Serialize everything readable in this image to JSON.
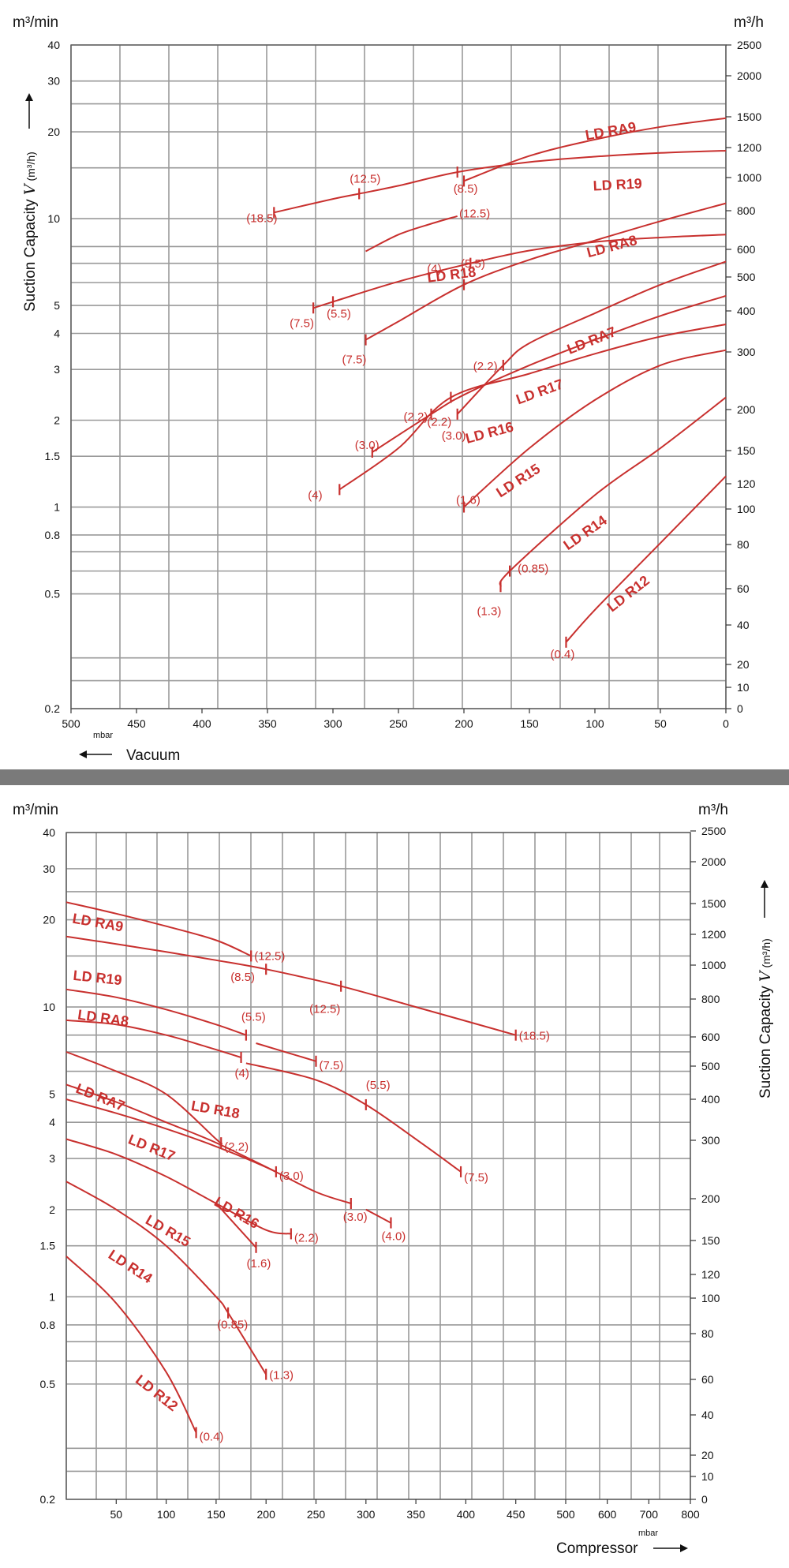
{
  "chart_data": [
    {
      "type": "line",
      "panel": "vacuum",
      "xlabel": "Vacuum",
      "x_unit": "mbar",
      "x_direction": "reversed",
      "xlim": [
        500,
        0
      ],
      "x_ticks": [
        500,
        450,
        400,
        350,
        300,
        250,
        200,
        150,
        100,
        50,
        0
      ],
      "ylabel": "Suction Capacity",
      "ylabel_symbol": "V",
      "ylabel_unit": "(m³/h)",
      "y_unit_left": "m³/min",
      "y_unit_right": "m³/h",
      "y_scale": "log",
      "ylim": [
        0.2,
        40
      ],
      "y_ticks_left": [
        "0.2",
        "0.5",
        "0.8",
        "1",
        "1.5",
        "2",
        "3",
        "4",
        "5",
        "10",
        "20",
        "30",
        "40"
      ],
      "y_ticks_right": [
        "0",
        "10",
        "20",
        "40",
        "60",
        "80",
        "100",
        "120",
        "150",
        "200",
        "300",
        "400",
        "500",
        "600",
        "800",
        "1000",
        "1200",
        "1500",
        "2000",
        "2500"
      ],
      "grid": true,
      "series": [
        {
          "name": "LD RA9",
          "x": [
            200,
            150,
            100,
            50,
            0
          ],
          "y": [
            13.5,
            16.5,
            18.8,
            20.8,
            22.3
          ],
          "annotations": [
            {
              "text": "(12.5)",
              "x": 200,
              "y": 13.5
            }
          ]
        },
        {
          "name": "LD R19",
          "x": [
            345,
            300,
            280,
            250,
            205,
            150,
            100,
            50,
            0
          ],
          "y": [
            10.5,
            11.7,
            12.2,
            13.0,
            14.5,
            15.7,
            16.4,
            16.9,
            17.2
          ],
          "annotations": [
            {
              "text": "(18.5)",
              "x": 345,
              "y": 10.5
            },
            {
              "text": "(12.5)",
              "x": 280,
              "y": 12.2
            },
            {
              "text": "(8.5)",
              "x": 205,
              "y": 14.5
            }
          ]
        },
        {
          "name": "LD R18",
          "x": [
            275,
            250,
            225,
            205
          ],
          "y": [
            7.7,
            8.8,
            9.6,
            10.2
          ],
          "annotations": []
        },
        {
          "name": "LD R18",
          "x": [
            315,
            300,
            250,
            195,
            150,
            100,
            50,
            0
          ],
          "y": [
            4.9,
            5.15,
            6.05,
            7.0,
            7.75,
            8.3,
            8.6,
            8.8
          ],
          "annotations": [
            {
              "text": "(7.5)",
              "x": 315,
              "y": 4.9
            },
            {
              "text": "(5.5)",
              "x": 300,
              "y": 5.15
            },
            {
              "text": "(4)",
              "x": 195,
              "y": 7.0
            }
          ]
        },
        {
          "name": "LD RA8",
          "x": [
            275,
            250,
            200,
            150,
            100,
            50,
            0
          ],
          "y": [
            3.8,
            4.4,
            5.9,
            7.2,
            8.4,
            9.8,
            11.3
          ],
          "annotations": [
            {
              "text": "(7.5)",
              "x": 275,
              "y": 3.8
            },
            {
              "text": "(5.5)",
              "x": 200,
              "y": 5.9
            }
          ]
        },
        {
          "name": "LD RA7",
          "x": [
            205,
            170,
            150,
            100,
            50,
            0
          ],
          "y": [
            2.1,
            3.1,
            3.7,
            4.7,
            5.9,
            7.1
          ],
          "annotations": [
            {
              "text": "(3.0)",
              "x": 205,
              "y": 2.1
            },
            {
              "text": "(2.2)",
              "x": 170,
              "y": 3.1
            }
          ]
        },
        {
          "name": "LD R17",
          "x": [
            270,
            225,
            200,
            150,
            100,
            50,
            0
          ],
          "y": [
            1.55,
            2.1,
            2.45,
            3.1,
            3.8,
            4.6,
            5.4
          ],
          "annotations": [
            {
              "text": "(3.0)",
              "x": 270,
              "y": 1.55
            },
            {
              "text": "(2.2)",
              "x": 225,
              "y": 2.1
            }
          ]
        },
        {
          "name": "LD R16",
          "x": [
            295,
            250,
            210,
            150,
            100,
            50,
            0
          ],
          "y": [
            1.15,
            1.6,
            2.4,
            2.9,
            3.4,
            3.9,
            4.3
          ],
          "annotations": [
            {
              "text": "(4)",
              "x": 295,
              "y": 1.15
            },
            {
              "text": "(2.2)",
              "x": 210,
              "y": 2.4
            }
          ]
        },
        {
          "name": "LD R15",
          "x": [
            200,
            150,
            100,
            50,
            0
          ],
          "y": [
            1.0,
            1.6,
            2.35,
            3.1,
            3.5
          ],
          "annotations": [
            {
              "text": "(1.6)",
              "x": 200,
              "y": 1.0
            }
          ]
        },
        {
          "name": "LD R14",
          "x": [
            172,
            165,
            100,
            50,
            0
          ],
          "y": [
            0.53,
            0.6,
            1.1,
            1.6,
            2.4
          ],
          "annotations": [
            {
              "text": "(1.3)",
              "x": 172,
              "y": 0.53
            },
            {
              "text": "(0.85)",
              "x": 165,
              "y": 0.6
            }
          ]
        },
        {
          "name": "LD R12",
          "x": [
            122,
            100,
            50,
            0
          ],
          "y": [
            0.34,
            0.44,
            0.75,
            1.28
          ],
          "annotations": [
            {
              "text": "(0.4)",
              "x": 122,
              "y": 0.34
            }
          ]
        }
      ]
    },
    {
      "type": "line",
      "panel": "compressor",
      "xlabel": "Compressor",
      "x_unit": "mbar",
      "xlim": [
        0,
        800
      ],
      "x_ticks": [
        50,
        100,
        150,
        200,
        250,
        300,
        350,
        400,
        450,
        500,
        600,
        700,
        800
      ],
      "ylabel": "Suction Capacity",
      "ylabel_symbol": "V",
      "ylabel_unit": "(m³/h)",
      "y_unit_left": "m³/min",
      "y_unit_right": "m³/h",
      "y_scale": "log",
      "ylim": [
        0.2,
        40
      ],
      "y_ticks_left": [
        "0.2",
        "0.5",
        "0.8",
        "1",
        "1.5",
        "2",
        "3",
        "4",
        "5",
        "10",
        "20",
        "30",
        "40"
      ],
      "y_ticks_right": [
        "0",
        "10",
        "20",
        "40",
        "60",
        "80",
        "100",
        "120",
        "150",
        "200",
        "300",
        "400",
        "500",
        "600",
        "800",
        "1000",
        "1200",
        "1500",
        "2000",
        "2500"
      ],
      "grid": true,
      "series": [
        {
          "name": "LD RA9",
          "x": [
            0,
            50,
            100,
            150,
            185
          ],
          "y": [
            23,
            21,
            19,
            17,
            15
          ],
          "annotations": [
            {
              "text": "(12.5)",
              "x": 185,
              "y": 15
            }
          ]
        },
        {
          "name": "LD R19",
          "x": [
            0,
            50,
            100,
            150,
            200,
            275,
            350,
            450
          ],
          "y": [
            17.5,
            16.5,
            15.5,
            14.5,
            13.5,
            11.8,
            10.0,
            8.0
          ],
          "annotations": [
            {
              "text": "(8.5)",
              "x": 200,
              "y": 13.5
            },
            {
              "text": "(12.5)",
              "x": 275,
              "y": 11.8
            },
            {
              "text": "(18.5)",
              "x": 450,
              "y": 8.0
            }
          ]
        },
        {
          "name": "LD RA8",
          "x": [
            0,
            50,
            100,
            150,
            180
          ],
          "y": [
            11.5,
            10.8,
            9.8,
            8.7,
            8.0
          ],
          "annotations": [
            {
              "text": "(5.5)",
              "x": 180,
              "y": 8.0
            }
          ]
        },
        {
          "name": "LD RA8",
          "x": [
            190,
            250
          ],
          "y": [
            7.5,
            6.5
          ],
          "annotations": [
            {
              "text": "(7.5)",
              "x": 250,
              "y": 6.5
            }
          ]
        },
        {
          "name": "LD R18",
          "x": [
            0,
            50,
            100,
            140,
            175
          ],
          "y": [
            9.0,
            8.7,
            8.0,
            7.3,
            6.7
          ],
          "annotations": [
            {
              "text": "(4)",
              "x": 175,
              "y": 6.7
            }
          ]
        },
        {
          "name": "LD R18",
          "x": [
            180,
            250,
            300,
            355,
            395
          ],
          "y": [
            6.4,
            5.6,
            4.6,
            3.4,
            2.7
          ],
          "annotations": [
            {
              "text": "(5.5)",
              "x": 300,
              "y": 4.6
            },
            {
              "text": "(7.5)",
              "x": 395,
              "y": 2.7
            }
          ]
        },
        {
          "name": "LD RA7",
          "x": [
            0,
            50,
            100,
            150,
            155
          ],
          "y": [
            7.0,
            6.0,
            5.0,
            3.5,
            3.4
          ],
          "annotations": [
            {
              "text": "(2.2)",
              "x": 155,
              "y": 3.4
            }
          ]
        },
        {
          "name": "LD R17",
          "x": [
            0,
            50,
            100,
            150,
            210
          ],
          "y": [
            5.4,
            4.7,
            4.0,
            3.4,
            2.7
          ],
          "annotations": [
            {
              "text": "(3.0)",
              "x": 210,
              "y": 2.7
            }
          ]
        },
        {
          "name": "LD R16",
          "x": [
            0,
            50,
            100,
            150,
            200,
            250,
            285
          ],
          "y": [
            4.8,
            4.3,
            3.8,
            3.3,
            2.8,
            2.3,
            2.1
          ],
          "annotations": [
            {
              "text": "(3.0)",
              "x": 285,
              "y": 2.1
            }
          ]
        },
        {
          "name": "LD R16",
          "x": [
            300,
            325
          ],
          "y": [
            2.0,
            1.8
          ],
          "annotations": [
            {
              "text": "(4.0)",
              "x": 325,
              "y": 1.8
            }
          ]
        },
        {
          "name": "LD R15",
          "x": [
            0,
            50,
            100,
            150,
            200,
            225
          ],
          "y": [
            3.5,
            3.1,
            2.6,
            2.1,
            1.7,
            1.65
          ],
          "annotations": [
            {
              "text": "(2.2)",
              "x": 225,
              "y": 1.65
            }
          ]
        },
        {
          "name": "LD R15",
          "x": [
            150,
            190
          ],
          "y": [
            2.1,
            1.48
          ],
          "annotations": [
            {
              "text": "(1.6)",
              "x": 190,
              "y": 1.48
            }
          ]
        },
        {
          "name": "LD R14",
          "x": [
            0,
            50,
            100,
            150,
            162,
            200
          ],
          "y": [
            2.5,
            2.0,
            1.5,
            1.0,
            0.88,
            0.54
          ],
          "annotations": [
            {
              "text": "(0.85)",
              "x": 162,
              "y": 0.88
            },
            {
              "text": "(1.3)",
              "x": 200,
              "y": 0.54
            }
          ]
        },
        {
          "name": "LD R12",
          "x": [
            0,
            50,
            100,
            130
          ],
          "y": [
            1.38,
            0.95,
            0.55,
            0.34
          ],
          "annotations": [
            {
              "text": "(0.4)",
              "x": 130,
              "y": 0.34
            }
          ]
        }
      ]
    }
  ]
}
